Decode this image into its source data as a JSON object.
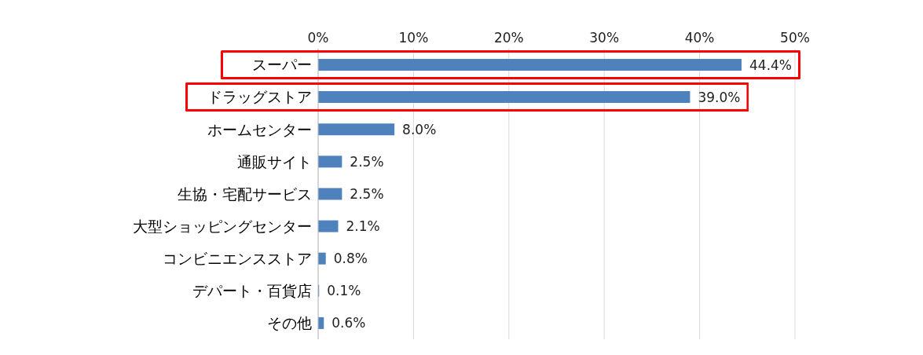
{
  "chart_data": {
    "type": "bar",
    "orientation": "horizontal",
    "categories": [
      "スーパー",
      "ドラッグストア",
      "ホームセンター",
      "通販サイト",
      "生協・宅配サービス",
      "大型ショッピングセンター",
      "コンビニエンスストア",
      "デパート・百貨店",
      "その他"
    ],
    "values": [
      44.4,
      39.0,
      8.0,
      2.5,
      2.5,
      2.1,
      0.8,
      0.1,
      0.6
    ],
    "value_labels": [
      "44.4%",
      "39.0%",
      "8.0%",
      "2.5%",
      "2.5%",
      "2.1%",
      "0.8%",
      "0.1%",
      "0.6%"
    ],
    "color": "#4f81bd",
    "xlim": [
      0,
      50
    ],
    "xticks": [
      {
        "value": 0,
        "label": "0%"
      },
      {
        "value": 10,
        "label": "10%"
      },
      {
        "value": 20,
        "label": "20%"
      },
      {
        "value": 30,
        "label": "30%"
      },
      {
        "value": 40,
        "label": "40%"
      },
      {
        "value": 50,
        "label": "50%"
      }
    ],
    "grid": "x"
  }
}
